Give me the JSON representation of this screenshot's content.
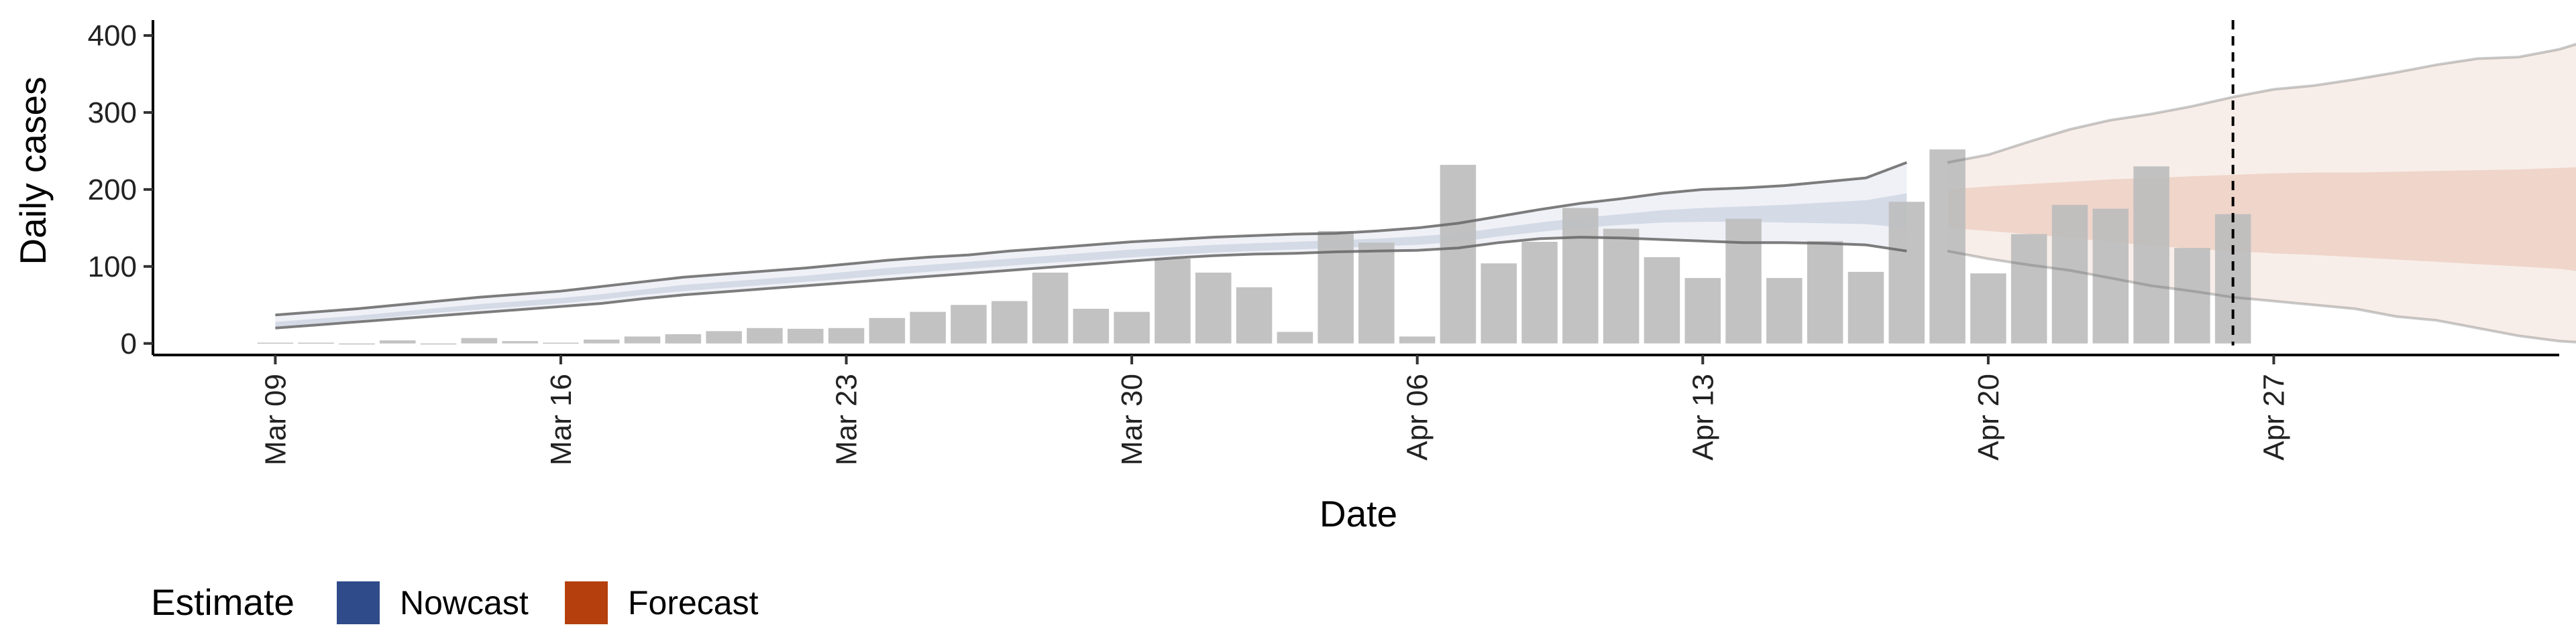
{
  "chart_data": {
    "type": "bar",
    "xlabel": "Date",
    "ylabel": "Daily cases",
    "x_range": [
      "2020-03-06",
      "2020-05-04"
    ],
    "ylim": [
      -15,
      420
    ],
    "y_ticks": [
      0,
      100,
      200,
      300,
      400
    ],
    "x_ticks": [
      {
        "date": "2020-03-09",
        "label": "Mar 09"
      },
      {
        "date": "2020-03-16",
        "label": "Mar 16"
      },
      {
        "date": "2020-03-23",
        "label": "Mar 23"
      },
      {
        "date": "2020-03-30",
        "label": "Mar 30"
      },
      {
        "date": "2020-04-06",
        "label": "Apr 06"
      },
      {
        "date": "2020-04-13",
        "label": "Apr 13"
      },
      {
        "date": "2020-04-20",
        "label": "Apr 20"
      },
      {
        "date": "2020-04-27",
        "label": "Apr 27"
      }
    ],
    "grid": false,
    "legend": {
      "title": "Estimate",
      "position": "bottom-left"
    },
    "reference_line": {
      "date": "2020-04-26",
      "style": "dashed"
    },
    "colors": {
      "bars": "#bdbdbd",
      "nowcast": "#2f4b8a",
      "forecast": "#b5400d",
      "bound_lines": "#666666"
    },
    "reported_cases": {
      "start_date": "2020-03-09",
      "values": [
        1,
        1,
        0,
        4,
        0,
        7,
        3,
        1,
        5,
        9,
        12,
        16,
        20,
        19,
        20,
        33,
        41,
        50,
        55,
        92,
        45,
        41,
        110,
        92,
        73,
        15,
        146,
        131,
        9,
        232,
        104,
        132,
        176,
        149,
        112,
        85,
        162,
        85,
        133,
        93,
        184,
        252,
        91,
        142,
        180,
        175,
        230,
        124,
        168
      ]
    },
    "series": [
      {
        "name": "Nowcast",
        "start_date": "2020-03-09",
        "upper_90": [
          37,
          41,
          45,
          50,
          55,
          60,
          64,
          68,
          74,
          80,
          86,
          90,
          94,
          98,
          103,
          108,
          112,
          115,
          120,
          124,
          128,
          132,
          135,
          138,
          140,
          142,
          143,
          146,
          150,
          156,
          165,
          174,
          182,
          188,
          195,
          200,
          202,
          205,
          210,
          215,
          235
        ],
        "upper_50": [
          28,
          32,
          36,
          41,
          46,
          51,
          55,
          59,
          64,
          70,
          76,
          80,
          84,
          88,
          93,
          98,
          102,
          106,
          110,
          114,
          118,
          122,
          125,
          128,
          130,
          132,
          134,
          136,
          139,
          143,
          150,
          157,
          163,
          168,
          173,
          176,
          178,
          180,
          183,
          186,
          195
        ],
        "median": [
          25,
          29,
          33,
          38,
          43,
          48,
          52,
          56,
          61,
          67,
          72,
          76,
          80,
          84,
          88,
          93,
          97,
          101,
          105,
          109,
          113,
          117,
          120,
          123,
          125,
          127,
          129,
          131,
          134,
          138,
          145,
          151,
          157,
          162,
          166,
          169,
          170,
          171,
          172,
          173,
          175
        ],
        "lower_50": [
          22,
          26,
          30,
          35,
          40,
          44,
          48,
          52,
          57,
          63,
          68,
          72,
          76,
          80,
          84,
          89,
          93,
          97,
          101,
          105,
          108,
          112,
          115,
          118,
          120,
          122,
          124,
          126,
          128,
          132,
          139,
          145,
          150,
          154,
          157,
          158,
          158,
          157,
          156,
          155,
          150
        ],
        "lower_90": [
          20,
          24,
          28,
          32,
          36,
          40,
          44,
          48,
          52,
          58,
          63,
          67,
          71,
          75,
          79,
          83,
          87,
          91,
          95,
          99,
          103,
          107,
          111,
          114,
          116,
          117,
          119,
          120,
          121,
          124,
          131,
          136,
          138,
          137,
          135,
          133,
          131,
          131,
          130,
          128,
          120
        ]
      },
      {
        "name": "Forecast",
        "start_date": "2020-04-19",
        "upper_90": [
          235,
          245,
          262,
          278,
          290,
          298,
          308,
          320,
          330,
          335,
          343,
          352,
          362,
          370,
          372,
          382,
          398
        ],
        "upper_50": [
          200,
          204,
          207,
          210,
          213,
          215,
          217,
          219,
          221,
          222,
          222,
          223,
          224,
          225,
          226,
          228,
          230
        ],
        "median": [
          180,
          178,
          177,
          175,
          174,
          173,
          172,
          171,
          170,
          168,
          167,
          165,
          163,
          162,
          161,
          160,
          158
        ],
        "lower_50": [
          150,
          146,
          142,
          137,
          132,
          127,
          123,
          120,
          117,
          115,
          112,
          109,
          106,
          103,
          100,
          97,
          90
        ],
        "lower_90": [
          120,
          110,
          102,
          95,
          85,
          75,
          68,
          60,
          55,
          50,
          45,
          35,
          30,
          20,
          10,
          3,
          0
        ]
      }
    ]
  }
}
